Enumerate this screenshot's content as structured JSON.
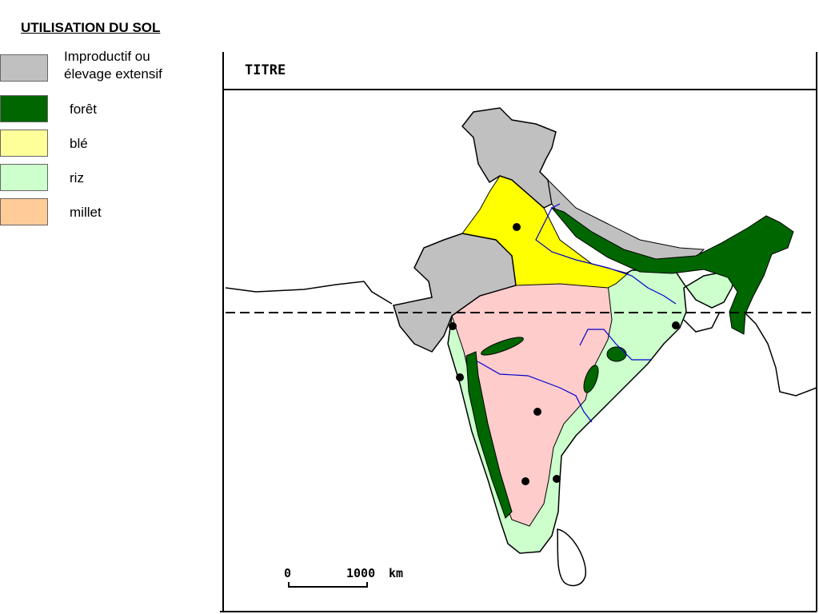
{
  "legend": {
    "title": "UTILISATION DU SOL",
    "items": [
      "Improductif ou élevage extensif",
      "forêt",
      "blé",
      "riz",
      "millet"
    ]
  },
  "map": {
    "title": "TITRE",
    "scale": {
      "start": "0",
      "end": "1000",
      "unit": "km"
    }
  }
}
